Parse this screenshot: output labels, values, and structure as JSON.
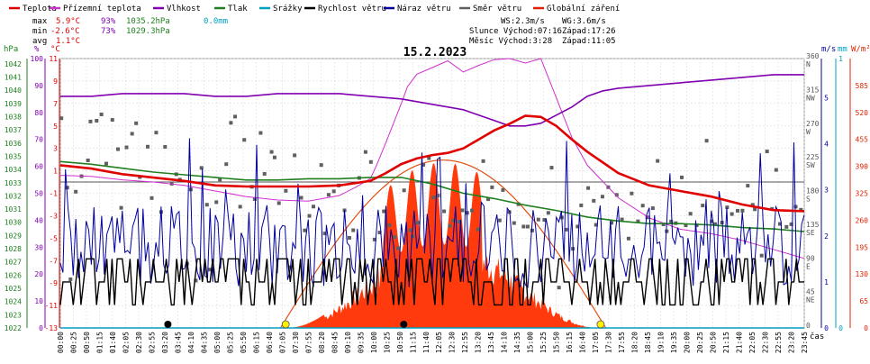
{
  "legend": [
    {
      "label": "Teplota",
      "color": "#e00000"
    },
    {
      "label": "Přízemní teplota",
      "color": "#d030d0"
    },
    {
      "label": "Vlhkost",
      "color": "#8000b0"
    },
    {
      "label": "Tlak",
      "color": "#208020"
    },
    {
      "label": "Srážky",
      "color": "#00a0c0"
    },
    {
      "label": "Rychlost větru",
      "color": "#000000"
    },
    {
      "label": "Náraz větru",
      "color": "#0000a0"
    },
    {
      "label": "Směr větru",
      "color": "#606060"
    },
    {
      "label": "Globální záření",
      "color": "#e02000"
    }
  ],
  "stats": {
    "max_label": "max",
    "max_temp": "5.9°C",
    "max_hum": "93%",
    "max_press": "1035.2hPa",
    "max_rain": "0.0mm",
    "min_label": "min",
    "min_temp": "-2.6°C",
    "min_hum": "73%",
    "min_press": "1029.3hPa",
    "avg_label": "avg",
    "avg_temp": "1.1°C"
  },
  "info": {
    "ws": "WS:2.3m/s",
    "wg": "WG:3.6m/s",
    "sun": "Slunce Východ:07:16",
    "sun_set": "Západ:17:26",
    "moon": "Měsíc Východ:3:28",
    "moon_set": "Západ:11:05"
  },
  "title": "15.2.2023",
  "axis_units": {
    "hpa": "hPa",
    "pct": "%",
    "degc": "°C",
    "ms": "m/s",
    "mm": "mm",
    "wm2": "W/m²",
    "time": "čas"
  },
  "colors": {
    "temp": "#e00000",
    "ground": "#d030d0",
    "hum": "#8000b0",
    "press": "#208020",
    "rain": "#00a0c0",
    "wind": "#000000",
    "gust": "#0000a0",
    "dir": "#606060",
    "rad": "#ff3000",
    "theory": "#e05010"
  },
  "chart_data": {
    "type": "line",
    "title": "15.2.2023",
    "x_unit": "čas",
    "x_ticks": [
      "00:00",
      "00:25",
      "00:50",
      "01:15",
      "01:40",
      "02:05",
      "02:30",
      "02:55",
      "03:20",
      "03:45",
      "04:10",
      "04:35",
      "05:00",
      "05:25",
      "05:50",
      "06:15",
      "06:40",
      "07:05",
      "07:30",
      "07:55",
      "08:20",
      "08:45",
      "09:10",
      "09:35",
      "10:00",
      "10:25",
      "10:50",
      "11:15",
      "11:40",
      "12:05",
      "12:30",
      "12:55",
      "13:20",
      "13:45",
      "14:10",
      "14:35",
      "15:00",
      "15:25",
      "15:50",
      "16:15",
      "16:40",
      "17:05",
      "17:30",
      "17:55",
      "18:20",
      "18:45",
      "19:10",
      "19:35",
      "20:00",
      "20:25",
      "20:50",
      "21:15",
      "21:40",
      "22:05",
      "22:30",
      "22:55",
      "23:20",
      "23:45"
    ],
    "hpa_ticks": [
      1022,
      1023,
      1024,
      1025,
      1026,
      1027,
      1028,
      1029,
      1030,
      1031,
      1032,
      1033,
      1034,
      1035,
      1036,
      1037,
      1038,
      1039,
      1040,
      1041,
      1042
    ],
    "pct_ticks": [
      0,
      10,
      20,
      30,
      40,
      50,
      60,
      70,
      80,
      90,
      100
    ],
    "temp_ticks": [
      -13,
      -11,
      -9,
      -7,
      -5,
      -3,
      -1,
      1,
      3,
      5,
      7,
      9,
      11
    ],
    "dir_ticks": [
      {
        "deg": "0",
        "name": ""
      },
      {
        "deg": "45",
        "name": "NE"
      },
      {
        "deg": "90",
        "name": "E"
      },
      {
        "deg": "135",
        "name": "SE"
      },
      {
        "deg": "180",
        "name": "S"
      },
      {
        "deg": "225",
        "name": "SW"
      },
      {
        "deg": "270",
        "name": "W"
      },
      {
        "deg": "315",
        "name": "NW"
      },
      {
        "deg": "360",
        "name": "N"
      }
    ],
    "ms_ticks": [
      0,
      1,
      2,
      3,
      4,
      5
    ],
    "mm_ticks": [
      0,
      1
    ],
    "rad_ticks": [
      0,
      65,
      130,
      195,
      260,
      325,
      390,
      455,
      520,
      585
    ],
    "ranges": {
      "temp": [
        -13,
        11
      ],
      "hum": [
        0,
        100
      ],
      "press": [
        1022,
        1042.4
      ],
      "wind": [
        0,
        5.85
      ],
      "rad": [
        0,
        650
      ],
      "dir": [
        0,
        360
      ]
    },
    "series": [
      {
        "name": "Teplota",
        "x": [
          0,
          1,
          2,
          3,
          4,
          5,
          6,
          7,
          8,
          9,
          10,
          10.5,
          11,
          11.5,
          12,
          12.5,
          13,
          13.5,
          14,
          14.5,
          15,
          15.5,
          16,
          16.5,
          17,
          18,
          19,
          20,
          21,
          22,
          23,
          24
        ],
        "y": [
          1.5,
          1.2,
          0.7,
          0.4,
          0.1,
          -0.3,
          -0.4,
          -0.4,
          -0.4,
          -0.3,
          0.1,
          0.8,
          1.6,
          2.1,
          2.4,
          2.6,
          3.0,
          3.8,
          4.6,
          5.2,
          5.9,
          5.8,
          5.0,
          3.8,
          2.7,
          0.8,
          -0.3,
          -0.8,
          -1.3,
          -2.0,
          -2.5,
          -2.6
        ]
      },
      {
        "name": "Přízemní teplota",
        "x": [
          0,
          1,
          2,
          3,
          4,
          5,
          6,
          7,
          8,
          9,
          9.5,
          10,
          10.2,
          10.5,
          11,
          11.2,
          11.5,
          12,
          12.5,
          13,
          13.5,
          14,
          14.5,
          15,
          15.5,
          16,
          16.5,
          17,
          18,
          19,
          20,
          21,
          22,
          23,
          24
        ],
        "y": [
          0.6,
          0.5,
          0.2,
          0.0,
          -0.3,
          -0.8,
          -1.3,
          -1.6,
          -1.7,
          -1.2,
          -0.5,
          0.3,
          1.5,
          3.5,
          7.0,
          8.5,
          9.6,
          10.2,
          10.8,
          9.8,
          10.4,
          10.9,
          11.0,
          10.6,
          11.0,
          7.5,
          4.0,
          1.5,
          -1.4,
          -3.2,
          -4.2,
          -4.6,
          -5.2,
          -6.0,
          -6.8
        ]
      },
      {
        "name": "Vlhkost",
        "x": [
          0,
          1,
          2,
          3,
          4,
          5,
          6,
          7,
          8,
          9,
          10,
          11,
          12,
          13,
          14,
          14.5,
          15,
          15.5,
          16,
          16.5,
          17,
          17.5,
          18,
          19,
          20,
          21,
          22,
          23,
          24
        ],
        "y": [
          86,
          86,
          87,
          87,
          87,
          86,
          86,
          87,
          87,
          87,
          86,
          85,
          83,
          81,
          77,
          75,
          75,
          76,
          79,
          82,
          86,
          88,
          89,
          90,
          91,
          92,
          93,
          94,
          94
        ]
      },
      {
        "name": "Tlak",
        "x": [
          0,
          1,
          2,
          3,
          4,
          5,
          6,
          7,
          8,
          9,
          10,
          11,
          12,
          13,
          14,
          15,
          16,
          17,
          18,
          19,
          20,
          21,
          22,
          23,
          24
        ],
        "y": [
          1034.6,
          1034.4,
          1034.1,
          1033.8,
          1033.6,
          1033.4,
          1033.2,
          1033.2,
          1033.3,
          1033.3,
          1033.4,
          1033.4,
          1032.9,
          1032.2,
          1031.8,
          1031.3,
          1030.9,
          1030.4,
          1030.1,
          1029.9,
          1029.9,
          1029.8,
          1029.6,
          1029.5,
          1029.3
        ]
      },
      {
        "name": "Srážky",
        "x": [
          0,
          24
        ],
        "y": [
          0,
          0
        ]
      }
    ],
    "wind_speed_mean": 1.1,
    "wind_gust_mean": 1.6,
    "radiation_peak": 400,
    "radiation_start_h": 7.3,
    "radiation_end_h": 17.4,
    "theoretical_peak": 405
  }
}
